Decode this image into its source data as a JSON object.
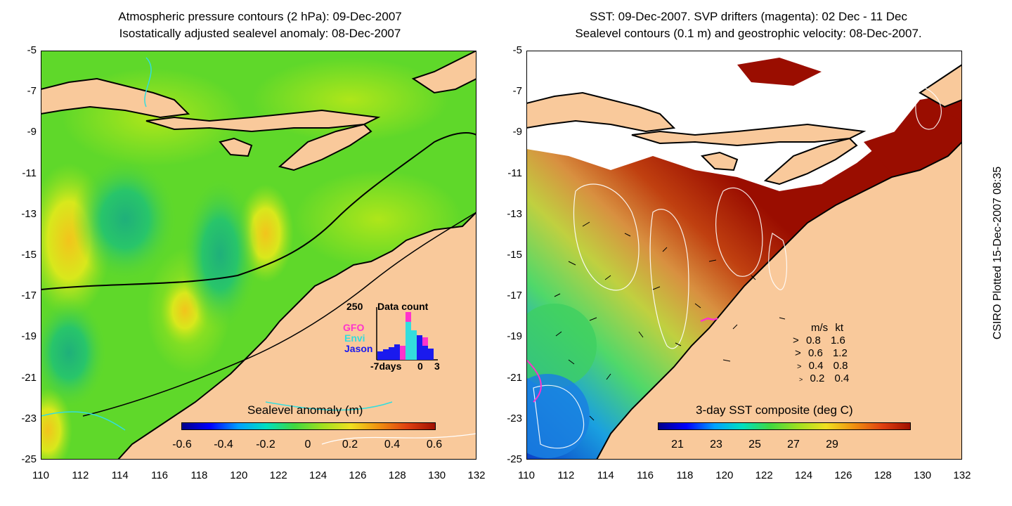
{
  "left_panel": {
    "title_line1": "Atmospheric pressure contours (2 hPa): 09-Dec-2007",
    "title_line2": "Isostatically adjusted sealevel anomaly: 08-Dec-2007",
    "colorbar": {
      "label": "Sealevel anomaly (m)",
      "ticks": [
        "-0.6",
        "-0.4",
        "-0.2",
        "0",
        "0.2",
        "0.4",
        "0.6"
      ]
    },
    "data_count": {
      "max_label": "250",
      "title": "Data count",
      "x_labels": [
        "-7days",
        "0",
        "3"
      ],
      "legend": [
        {
          "name": "GFO",
          "color": "#ff33cc"
        },
        {
          "name": "Envi",
          "color": "#33dddd"
        },
        {
          "name": "Jason",
          "color": "#1a1aee"
        }
      ]
    }
  },
  "right_panel": {
    "title_line1": "SST: 09-Dec-2007. SVP drifters (magenta): 02 Dec - 11 Dec",
    "title_line2": "Sealevel contours (0.1 m) and geostrophic velocity: 08-Dec-2007.",
    "colorbar": {
      "label": "3-day SST composite (deg C)",
      "ticks": [
        "21",
        "23",
        "25",
        "27",
        "29"
      ]
    },
    "velocity_legend": {
      "header_ms": "m/s",
      "header_kt": "kt",
      "rows": [
        {
          "ms": "0.8",
          "kt": "1.6"
        },
        {
          "ms": "0.6",
          "kt": "1.2"
        },
        {
          "ms": "0.4",
          "kt": "0.8"
        },
        {
          "ms": "0.2",
          "kt": "0.4"
        }
      ]
    }
  },
  "axes": {
    "y_ticks": [
      "-5",
      "-7",
      "-9",
      "-11",
      "-13",
      "-15",
      "-17",
      "-19",
      "-21",
      "-23",
      "-25"
    ],
    "x_ticks": [
      "110",
      "112",
      "114",
      "116",
      "118",
      "120",
      "122",
      "124",
      "126",
      "128",
      "130",
      "132"
    ],
    "lon_range": [
      110,
      132
    ],
    "lat_range": [
      -25,
      -5
    ]
  },
  "credit": "CSIRO Plotted 15-Dec-2007 08:35",
  "colors": {
    "land": "#f9c99b",
    "coast": "#000000",
    "sla_mid": "#5fd82a",
    "sst_warm": "#9a0d00"
  }
}
